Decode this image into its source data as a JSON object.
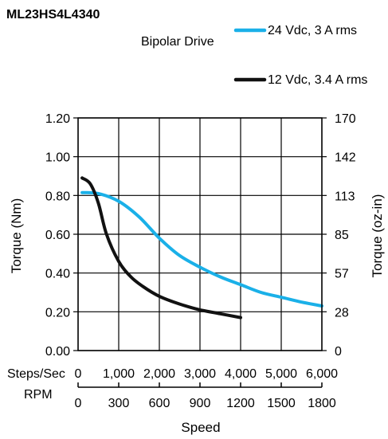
{
  "chart_data": {
    "type": "line",
    "title": "ML23HS4L4340",
    "subtitle": "Bipolar Drive",
    "xlabel": "Speed",
    "ylabel": "Torque (Nm)",
    "y2label": "Torque (oz-in)",
    "x_axis_title_steps": "Steps/Sec",
    "x_axis_title_rpm": "RPM",
    "xlim": [
      0,
      6000
    ],
    "ylim": [
      0,
      1.2
    ],
    "grid": true,
    "legend_position": "top-right",
    "x_ticks": [
      0,
      1000,
      2000,
      3000,
      4000,
      5000,
      6000
    ],
    "x_tick_labels": [
      "0",
      "1,000",
      "2,000",
      "3,000",
      "4,000",
      "5,000",
      "6,000"
    ],
    "rpm_tick_labels": [
      "0",
      "300",
      "600",
      "900",
      "1200",
      "1500",
      "1800"
    ],
    "y_ticks": [
      0,
      0.2,
      0.4,
      0.6,
      0.8,
      1.0,
      1.2
    ],
    "y_tick_labels": [
      "0.00",
      "0.20",
      "0.40",
      "0.60",
      "0.80",
      "1.00",
      "1.20"
    ],
    "y2_tick_labels": [
      "0",
      "28",
      "57",
      "85",
      "113",
      "142",
      "170"
    ],
    "series": [
      {
        "name": "24 Vdc, 3 A rms",
        "color": "#1ab0e8",
        "x": [
          100,
          500,
          1000,
          1500,
          2000,
          2500,
          3000,
          3500,
          4000,
          4500,
          5000,
          5500,
          6000
        ],
        "y": [
          0.815,
          0.81,
          0.77,
          0.69,
          0.58,
          0.49,
          0.43,
          0.38,
          0.34,
          0.3,
          0.275,
          0.25,
          0.23
        ]
      },
      {
        "name": "12 Vdc, 3.4 A rms",
        "color": "#111111",
        "x": [
          100,
          300,
          500,
          700,
          1000,
          1300,
          1600,
          2000,
          2500,
          3000,
          3500,
          4000
        ],
        "y": [
          0.89,
          0.86,
          0.76,
          0.6,
          0.46,
          0.38,
          0.33,
          0.28,
          0.24,
          0.21,
          0.19,
          0.17
        ]
      }
    ]
  }
}
